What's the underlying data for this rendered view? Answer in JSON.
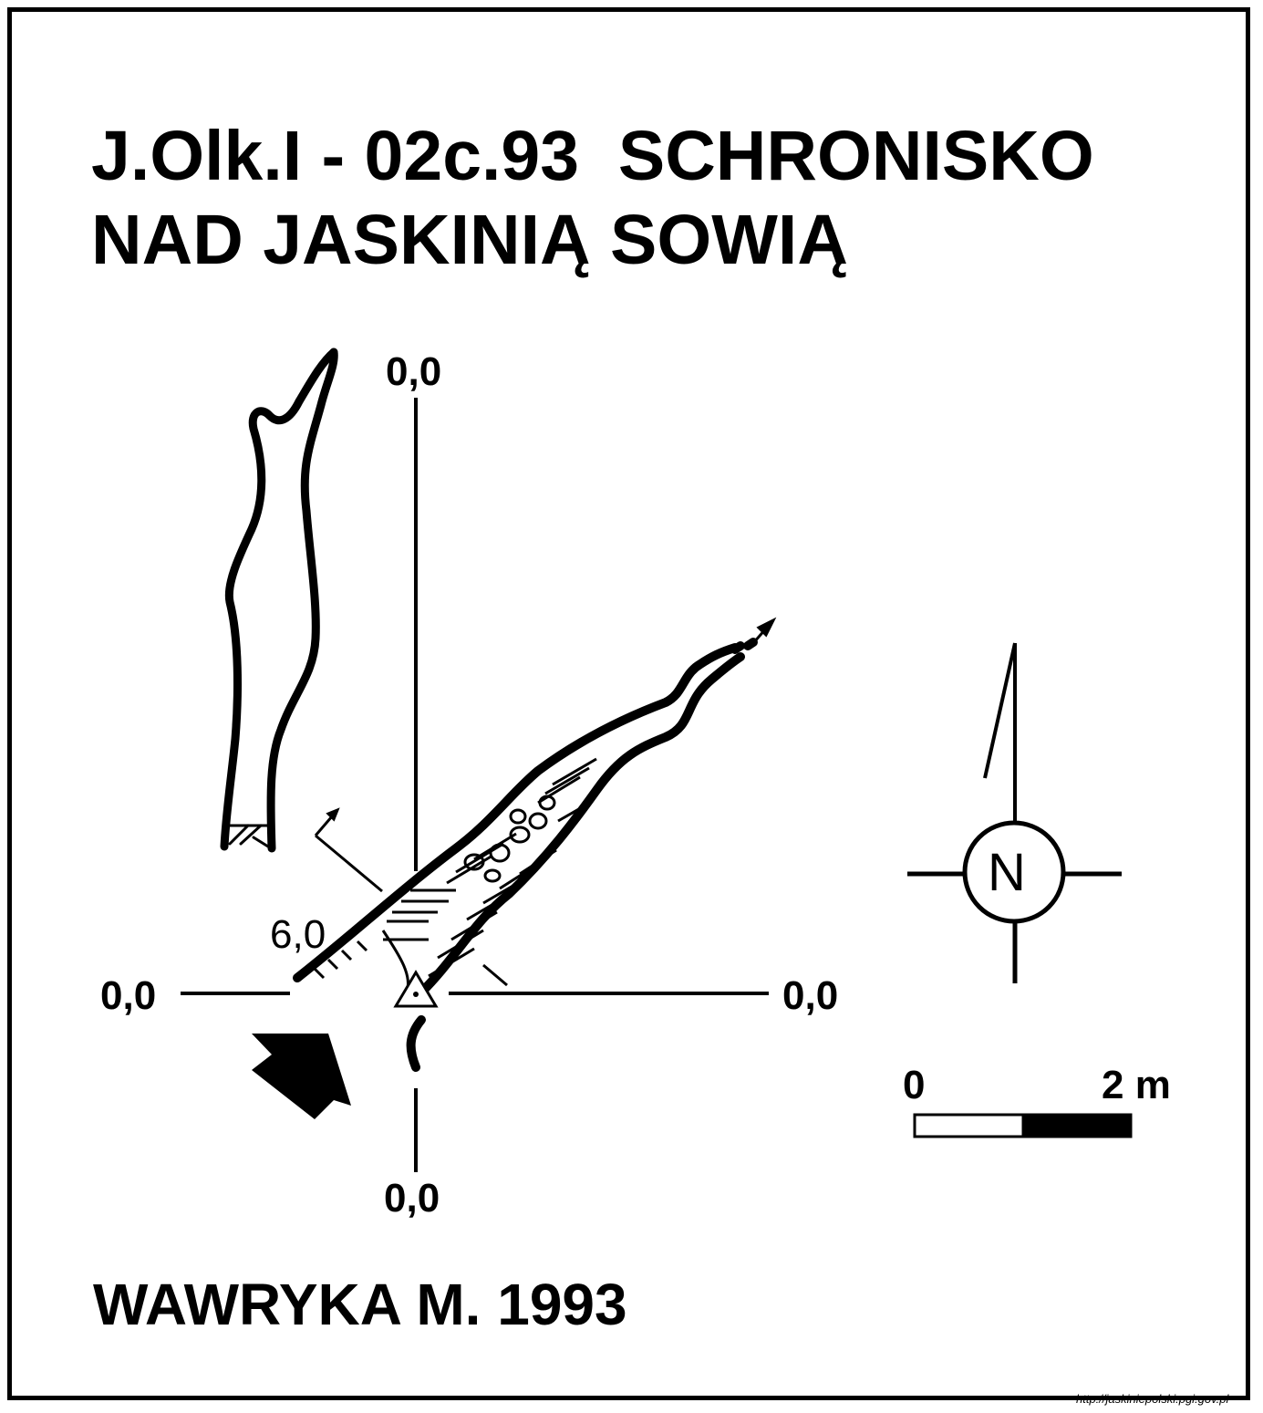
{
  "title": {
    "line1": "J.Olk.I - 02c.93  SCHRONISKO",
    "line2": "NAD JASKINIĄ SOWIĄ"
  },
  "axes": {
    "top_label": "0,0",
    "left_label": "0,0",
    "right_label": "0,0",
    "bottom_label": "0,0"
  },
  "depth_label": "6,0",
  "north_label": "N",
  "scale": {
    "start_label": "0",
    "end_label": "2 m"
  },
  "author": "WAWRYKA M. 1993",
  "source": "http://jaskiniepolski.pgi.gov.pl",
  "colors": {
    "ink": "#000000",
    "paper": "#ffffff"
  }
}
